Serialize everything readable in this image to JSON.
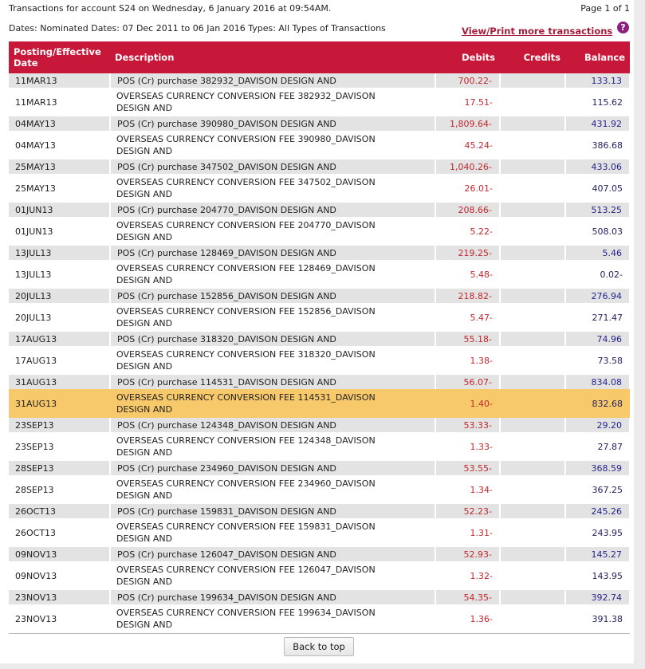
{
  "header": {
    "title": "Transactions for account S24 on Wednesday, 6 January 2016 at 09:54AM.",
    "page": "Page 1 of 1",
    "filters": "Dates: Nominated Dates: 07 Dec 2011 to 06 Jan 2016  Types: All Types of Transactions",
    "more_link": "View/Print more transactions",
    "help_icon": "?"
  },
  "table": {
    "columns": [
      "Posting/Effective Date",
      "Description",
      "Debits",
      "Credits",
      "Balance"
    ],
    "rows": [
      {
        "date": "11MAR13",
        "desc": "POS (Cr) purchase 382932_DAVISON DESIGN AND",
        "debit": "700.22-",
        "credit": "",
        "balance": "133.13"
      },
      {
        "date": "11MAR13",
        "desc": "OVERSEAS CURRENCY CONVERSION FEE 382932_DAVISON\nDESIGN AND",
        "debit": "17.51-",
        "credit": "",
        "balance": "115.62"
      },
      {
        "date": "04MAY13",
        "desc": "POS (Cr) purchase 390980_DAVISON DESIGN AND",
        "debit": "1,809.64-",
        "credit": "",
        "balance": "431.92"
      },
      {
        "date": "04MAY13",
        "desc": "OVERSEAS CURRENCY CONVERSION FEE 390980_DAVISON\nDESIGN AND",
        "debit": "45.24-",
        "credit": "",
        "balance": "386.68"
      },
      {
        "date": "25MAY13",
        "desc": "POS (Cr) purchase 347502_DAVISON DESIGN AND",
        "debit": "1,040.26-",
        "credit": "",
        "balance": "433.06"
      },
      {
        "date": "25MAY13",
        "desc": "OVERSEAS CURRENCY CONVERSION FEE 347502_DAVISON\nDESIGN AND",
        "debit": "26.01-",
        "credit": "",
        "balance": "407.05"
      },
      {
        "date": "01JUN13",
        "desc": "POS (Cr) purchase 204770_DAVISON DESIGN AND",
        "debit": "208.66-",
        "credit": "",
        "balance": "513.25"
      },
      {
        "date": "01JUN13",
        "desc": "OVERSEAS CURRENCY CONVERSION FEE 204770_DAVISON\nDESIGN AND",
        "debit": "5.22-",
        "credit": "",
        "balance": "508.03"
      },
      {
        "date": "13JUL13",
        "desc": "POS (Cr) purchase 128469_DAVISON DESIGN AND",
        "debit": "219.25-",
        "credit": "",
        "balance": "5.46"
      },
      {
        "date": "13JUL13",
        "desc": "OVERSEAS CURRENCY CONVERSION FEE 128469_DAVISON\nDESIGN AND",
        "debit": "5.48-",
        "credit": "",
        "balance": "0.02-"
      },
      {
        "date": "20JUL13",
        "desc": "POS (Cr) purchase 152856_DAVISON DESIGN AND",
        "debit": "218.82-",
        "credit": "",
        "balance": "276.94"
      },
      {
        "date": "20JUL13",
        "desc": "OVERSEAS CURRENCY CONVERSION FEE 152856_DAVISON\nDESIGN AND",
        "debit": "5.47-",
        "credit": "",
        "balance": "271.47"
      },
      {
        "date": "17AUG13",
        "desc": "POS (Cr) purchase 318320_DAVISON DESIGN AND",
        "debit": "55.18-",
        "credit": "",
        "balance": "74.96"
      },
      {
        "date": "17AUG13",
        "desc": "OVERSEAS CURRENCY CONVERSION FEE 318320_DAVISON\nDESIGN AND",
        "debit": "1.38-",
        "credit": "",
        "balance": "73.58"
      },
      {
        "date": "31AUG13",
        "desc": "POS (Cr) purchase 114531_DAVISON DESIGN AND",
        "debit": "56.07-",
        "credit": "",
        "balance": "834.08"
      },
      {
        "date": "31AUG13",
        "desc": "OVERSEAS CURRENCY CONVERSION FEE 114531_DAVISON\nDESIGN AND",
        "debit": "1.40-",
        "credit": "",
        "balance": "832.68",
        "highlighted": true
      },
      {
        "date": "23SEP13",
        "desc": "POS (Cr) purchase 124348_DAVISON DESIGN AND",
        "debit": "53.33-",
        "credit": "",
        "balance": "29.20"
      },
      {
        "date": "23SEP13",
        "desc": "OVERSEAS CURRENCY CONVERSION FEE 124348_DAVISON\nDESIGN AND",
        "debit": "1.33-",
        "credit": "",
        "balance": "27.87"
      },
      {
        "date": "28SEP13",
        "desc": "POS (Cr) purchase 234960_DAVISON DESIGN AND",
        "debit": "53.55-",
        "credit": "",
        "balance": "368.59"
      },
      {
        "date": "28SEP13",
        "desc": "OVERSEAS CURRENCY CONVERSION FEE 234960_DAVISON\nDESIGN AND",
        "debit": "1.34-",
        "credit": "",
        "balance": "367.25"
      },
      {
        "date": "26OCT13",
        "desc": "POS (Cr) purchase 159831_DAVISON DESIGN AND",
        "debit": "52.23-",
        "credit": "",
        "balance": "245.26"
      },
      {
        "date": "26OCT13",
        "desc": "OVERSEAS CURRENCY CONVERSION FEE 159831_DAVISON\nDESIGN AND",
        "debit": "1.31-",
        "credit": "",
        "balance": "243.95"
      },
      {
        "date": "09NOV13",
        "desc": "POS (Cr) purchase 126047_DAVISON DESIGN AND",
        "debit": "52.93-",
        "credit": "",
        "balance": "145.27"
      },
      {
        "date": "09NOV13",
        "desc": "OVERSEAS CURRENCY CONVERSION FEE 126047_DAVISON\nDESIGN AND",
        "debit": "1.32-",
        "credit": "",
        "balance": "143.95"
      },
      {
        "date": "23NOV13",
        "desc": "POS (Cr) purchase 199634_DAVISON DESIGN AND",
        "debit": "54.35-",
        "credit": "",
        "balance": "392.74"
      },
      {
        "date": "23NOV13",
        "desc": "OVERSEAS CURRENCY CONVERSION FEE 199634_DAVISON\nDESIGN AND",
        "debit": "1.36-",
        "credit": "",
        "balance": "391.38"
      }
    ]
  },
  "footer": {
    "back_to_top": "Back to top"
  },
  "colors": {
    "header_bg": "#c8183a",
    "highlight": "#f8c96a",
    "debit": "#c0282e",
    "balance": "#24248c"
  }
}
